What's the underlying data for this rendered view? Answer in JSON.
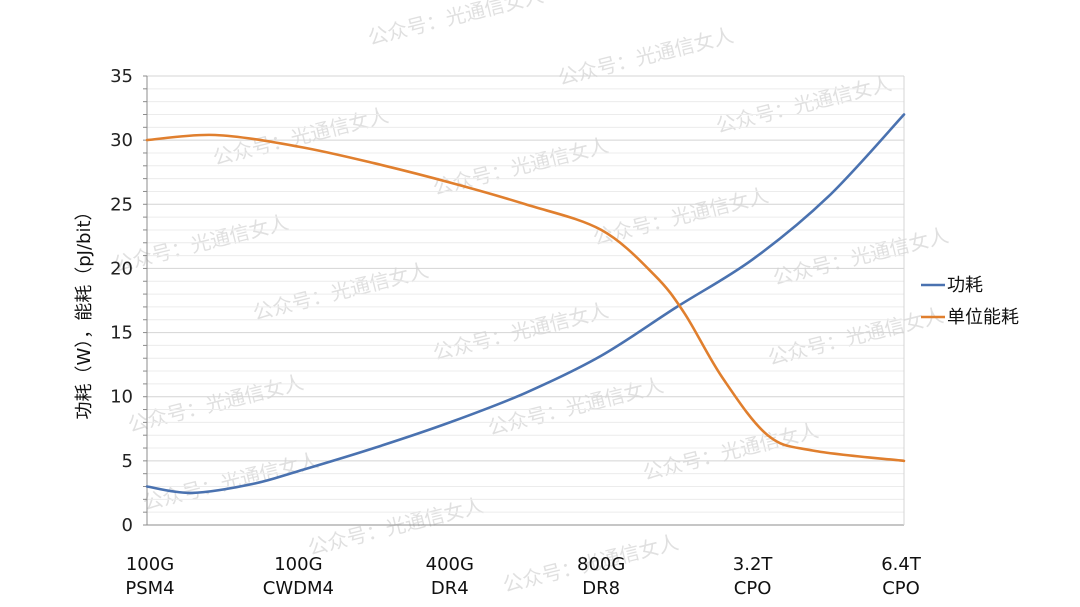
{
  "chart_data": {
    "type": "line",
    "title": "",
    "xlabel": "",
    "ylabel": "功耗（W），能耗（pJ/bit）",
    "ylim": [
      0,
      35
    ],
    "yticks": [
      0,
      5,
      10,
      15,
      20,
      25,
      30,
      35
    ],
    "categories": [
      [
        "100G",
        "PSM4"
      ],
      [
        "100G",
        "CWDM4"
      ],
      [
        "400G",
        "DR4"
      ],
      [
        "800G",
        "DR8"
      ],
      [
        "3.2T",
        "CPO"
      ],
      [
        "6.4T",
        "CPO"
      ]
    ],
    "grid": true,
    "legend_position": "right",
    "series": [
      {
        "name": "功耗",
        "color": "#4a72b0",
        "points": [
          [
            0,
            3.0
          ],
          [
            0.3,
            2.5
          ],
          [
            0.7,
            3.2
          ],
          [
            1.0,
            4.2
          ],
          [
            1.5,
            6.0
          ],
          [
            2.0,
            8.0
          ],
          [
            2.5,
            10.3
          ],
          [
            3.0,
            13.2
          ],
          [
            3.5,
            17.0
          ],
          [
            4.0,
            20.7
          ],
          [
            4.5,
            25.6
          ],
          [
            5.0,
            32.0
          ]
        ]
      },
      {
        "name": "单位能耗",
        "color": "#e07f2e",
        "points": [
          [
            0,
            30.0
          ],
          [
            0.45,
            30.4
          ],
          [
            1.0,
            29.5
          ],
          [
            1.5,
            28.2
          ],
          [
            2.0,
            26.7
          ],
          [
            2.5,
            25.0
          ],
          [
            3.0,
            23.0
          ],
          [
            3.35,
            19.5
          ],
          [
            3.55,
            16.5
          ],
          [
            3.8,
            11.5
          ],
          [
            4.1,
            7.0
          ],
          [
            4.4,
            5.8
          ],
          [
            5.0,
            5.0
          ]
        ]
      }
    ]
  },
  "watermark": {
    "text": "公众号：光通信女人"
  }
}
